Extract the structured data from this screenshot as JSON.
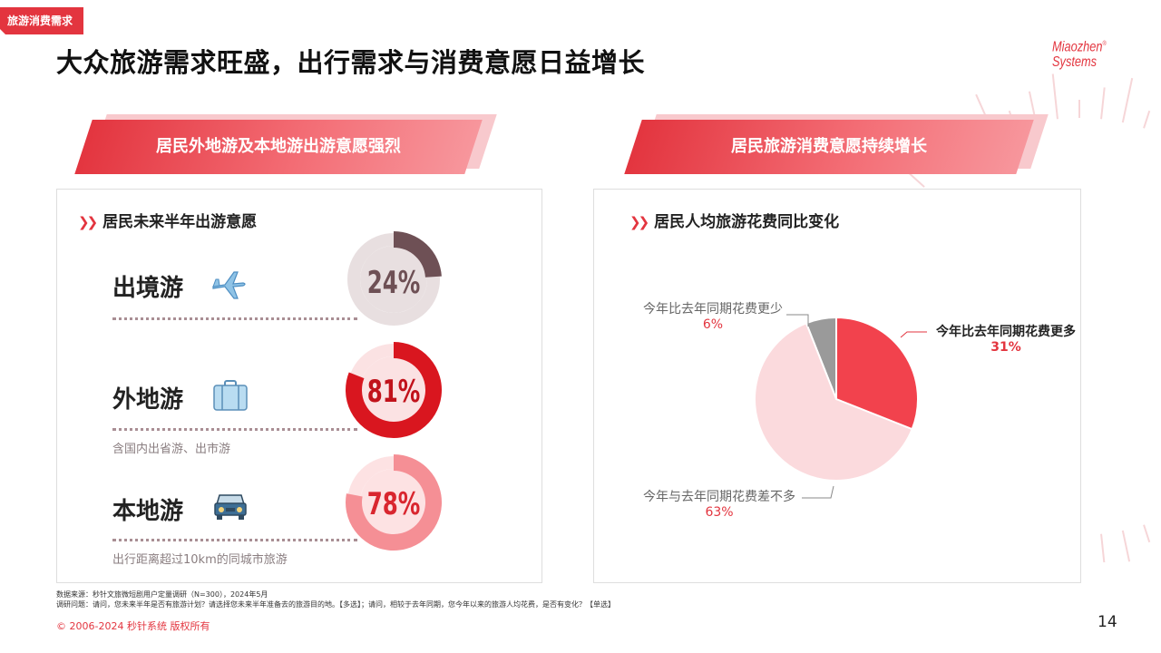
{
  "tag": "旅游消费需求",
  "title": "大众旅游需求旺盛，出行需求与消费意愿日益增长",
  "logo": {
    "line1": "Miaozhen",
    "line2": "Systems"
  },
  "left": {
    "banner": "居民外地游及本地游出游意愿强烈",
    "subtitle": "居民未来半年出游意愿",
    "items": [
      {
        "label": "出境游",
        "note": "",
        "percent": "24%",
        "value": 24,
        "color": "#6e5055",
        "track": "#e8dfe0",
        "icon": "airplane-icon"
      },
      {
        "label": "外地游",
        "note": "含国内出省游、出市游",
        "percent": "81%",
        "value": 81,
        "color": "#d9161f",
        "track": "#fbe2e3",
        "icon": "suitcase-icon"
      },
      {
        "label": "本地游",
        "note": "出行距离超过10km的同城市旅游",
        "percent": "78%",
        "value": 78,
        "color": "#f58f95",
        "track": "#fde2e3",
        "icon": "car-icon"
      }
    ]
  },
  "right": {
    "banner": "居民旅游消费意愿持续增长",
    "subtitle": "居民人均旅游花费同比变化"
  },
  "chart_data": {
    "type": "pie",
    "title": "居民人均旅游花费同比变化",
    "slices": [
      {
        "label": "今年比去年同期花费更多",
        "value": 31,
        "pct": "31%",
        "color": "#f2424d"
      },
      {
        "label": "今年与去年同期花费差不多",
        "value": 63,
        "pct": "63%",
        "color": "#fbdadd"
      },
      {
        "label": "今年比去年同期花费更少",
        "value": 6,
        "pct": "6%",
        "color": "#9a9a9a"
      }
    ]
  },
  "footnote": {
    "source": "数据来源：秒针文旅微短剧用户定量调研（N=300），2024年5月",
    "question": "调研问题：请问，您未来半年是否有旅游计划？请选择您未来半年准备去的旅游目的地。【多选】；请问，相较于去年同期，您今年以来的旅游人均花费，是否有变化？【单选】"
  },
  "copyright": "© 2006-2024 秒针系统 版权所有",
  "page_number": "14"
}
